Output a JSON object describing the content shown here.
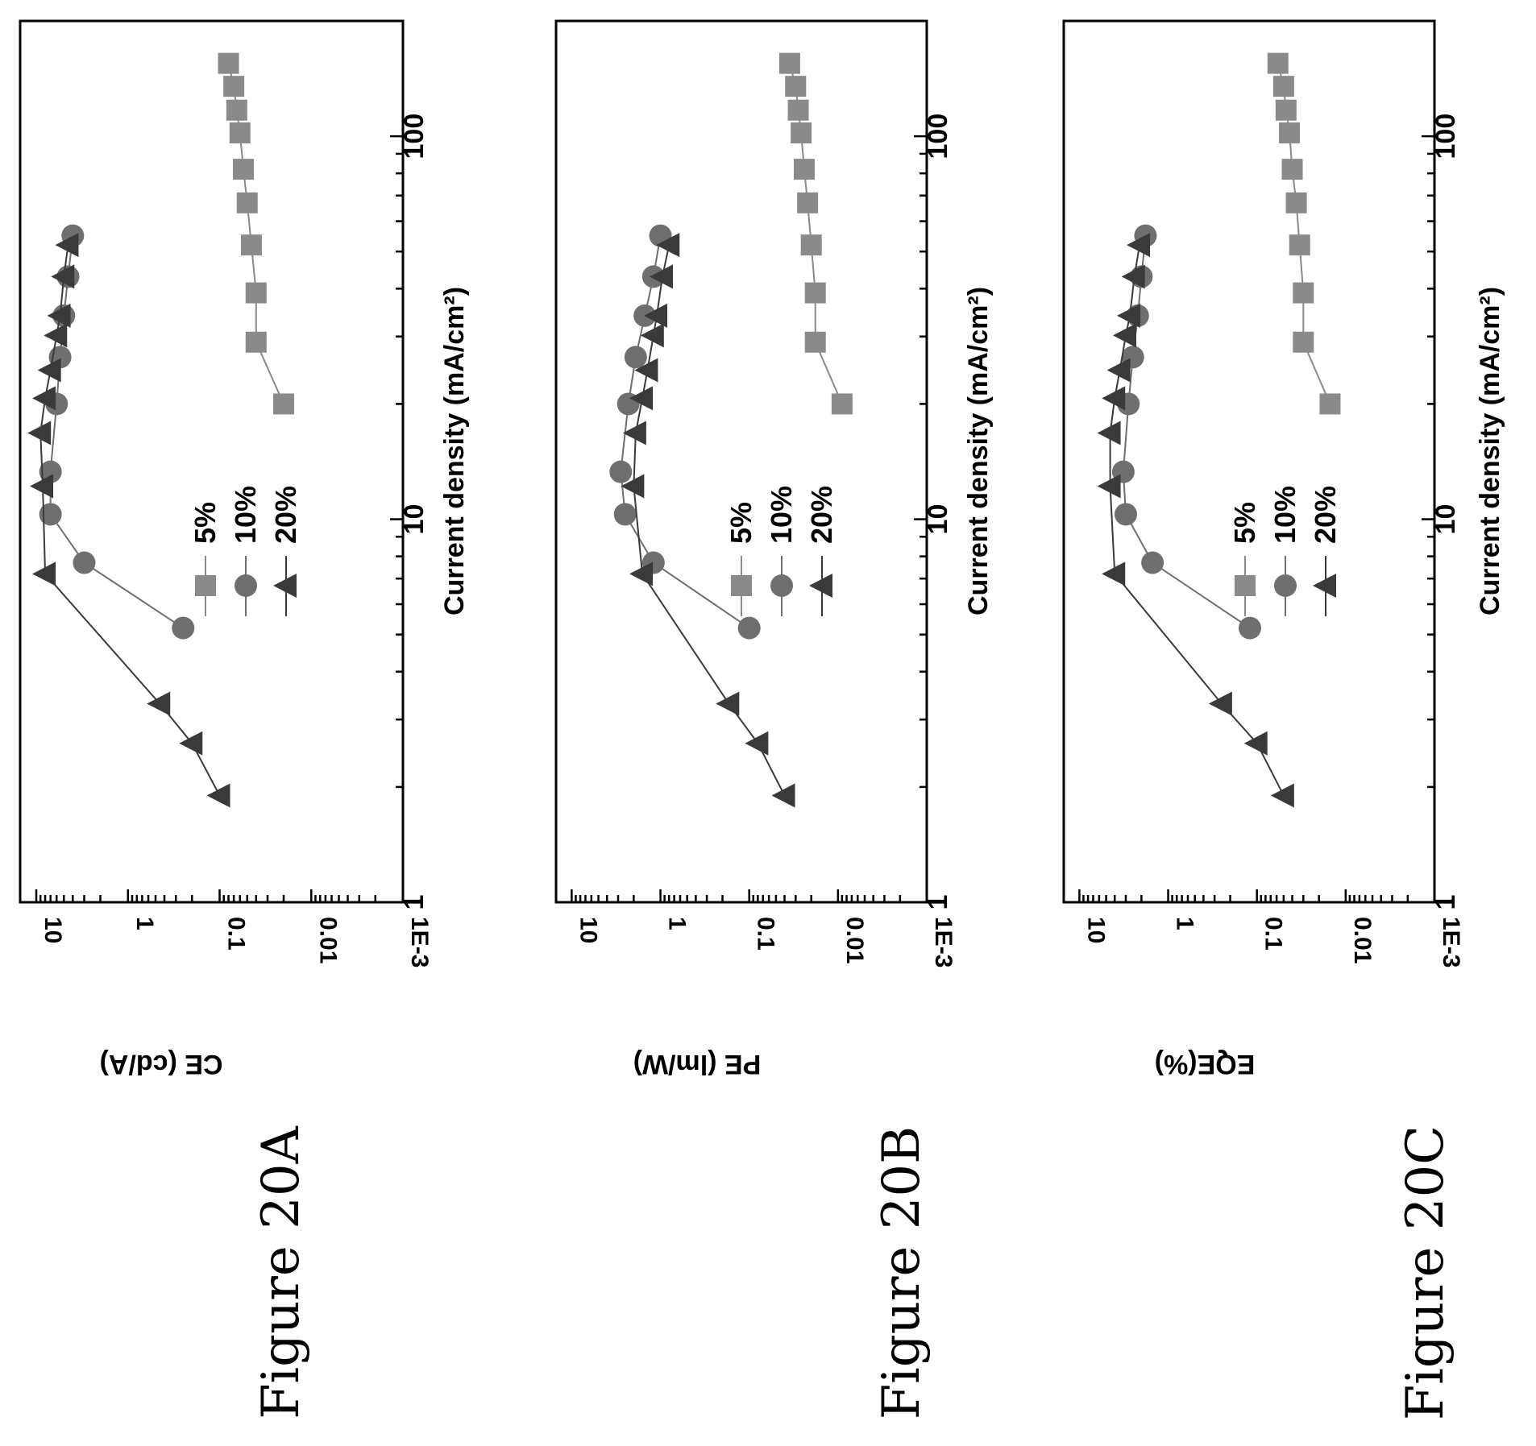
{
  "colors": {
    "s5": "#8a8a8a",
    "s10": "#6f6f6f",
    "s20": "#3a3a3a",
    "axis": "#000000",
    "background": "#ffffff"
  },
  "chart_data": [
    {
      "type": "line",
      "figure_label": "Figure 20A",
      "title": "",
      "xlabel": "Current density (mA/cm²)",
      "ylabel": "CE (cd/A)",
      "xscale": "log",
      "yscale": "log",
      "xlim": [
        1,
        200
      ],
      "ylim": [
        0.001,
        15
      ],
      "xticks": [
        "1",
        "10",
        "100"
      ],
      "yticks": [
        "10",
        "1",
        "0.1",
        "0.01",
        "1E-3"
      ],
      "legend_placement": "bottom-left",
      "orientation": "rotated 90° clockwise",
      "series": [
        {
          "name": "5%",
          "marker": "square",
          "x": [
            20,
            29,
            39,
            52,
            67,
            82,
            102,
            117,
            135,
            155
          ],
          "y": [
            0.02,
            0.04,
            0.04,
            0.045,
            0.05,
            0.055,
            0.06,
            0.065,
            0.07,
            0.08
          ]
        },
        {
          "name": "10%",
          "marker": "circle",
          "x": [
            5.2,
            7.7,
            10.3,
            13.3,
            20,
            26.5,
            34,
            43,
            55
          ],
          "y": [
            0.25,
            3.0,
            7.0,
            7.0,
            6.0,
            5.5,
            5.0,
            4.5,
            4.0
          ]
        },
        {
          "name": "20%",
          "marker": "triangle",
          "x": [
            1.9,
            2.6,
            3.3,
            7.2,
            12.2,
            16.8,
            20.7,
            24.5,
            30.2,
            34,
            43,
            52
          ],
          "y": [
            0.1,
            0.2,
            0.45,
            8.0,
            8.5,
            9.0,
            8.0,
            7.0,
            6.0,
            5.5,
            5.0,
            4.5
          ]
        }
      ]
    },
    {
      "type": "line",
      "figure_label": "Figure 20B",
      "title": "",
      "xlabel": "Current density (mA/cm²)",
      "ylabel": "PE (lm/W)",
      "xscale": "log",
      "yscale": "log",
      "xlim": [
        1,
        200
      ],
      "ylim": [
        0.001,
        15
      ],
      "xticks": [
        "1",
        "10",
        "100"
      ],
      "yticks": [
        "10",
        "1",
        "0.1",
        "0.01",
        "1E-3"
      ],
      "legend_placement": "bottom-left",
      "orientation": "rotated 90° clockwise",
      "series": [
        {
          "name": "5%",
          "marker": "square",
          "x": [
            20,
            29,
            39,
            52,
            67,
            82,
            102,
            117,
            135,
            155
          ],
          "y": [
            0.009,
            0.018,
            0.018,
            0.02,
            0.022,
            0.024,
            0.026,
            0.028,
            0.03,
            0.035
          ]
        },
        {
          "name": "10%",
          "marker": "circle",
          "x": [
            5.2,
            7.7,
            10.3,
            13.3,
            20,
            26.5,
            34,
            43,
            55
          ],
          "y": [
            0.1,
            1.2,
            2.5,
            2.8,
            2.3,
            1.9,
            1.5,
            1.2,
            1.0
          ]
        },
        {
          "name": "20%",
          "marker": "triangle",
          "x": [
            1.9,
            2.6,
            3.3,
            7.2,
            12.2,
            16.8,
            20.7,
            24.5,
            30.2,
            34,
            43,
            52
          ],
          "y": [
            0.04,
            0.08,
            0.17,
            1.6,
            2.0,
            1.9,
            1.6,
            1.4,
            1.2,
            1.1,
            0.95,
            0.8
          ]
        }
      ]
    },
    {
      "type": "line",
      "figure_label": "Figure 20C",
      "title": "",
      "xlabel": "Current density (mA/cm²)",
      "ylabel": "EQE(%)",
      "xscale": "log",
      "yscale": "log",
      "xlim": [
        1,
        200
      ],
      "ylim": [
        0.001,
        15
      ],
      "xticks": [
        "1",
        "10",
        "100"
      ],
      "yticks": [
        "10",
        "1",
        "0.1",
        "0.01",
        "1E-3"
      ],
      "legend_placement": "bottom-left",
      "orientation": "rotated 90° clockwise",
      "series": [
        {
          "name": "5%",
          "marker": "square",
          "x": [
            20,
            29,
            39,
            52,
            67,
            82,
            102,
            117,
            135,
            155
          ],
          "y": [
            0.015,
            0.03,
            0.03,
            0.033,
            0.036,
            0.04,
            0.043,
            0.047,
            0.05,
            0.058
          ]
        },
        {
          "name": "10%",
          "marker": "circle",
          "x": [
            5.2,
            7.7,
            10.3,
            13.3,
            20,
            26.5,
            34,
            43,
            55
          ],
          "y": [
            0.12,
            1.5,
            3.0,
            3.2,
            2.8,
            2.5,
            2.2,
            2.0,
            1.8
          ]
        },
        {
          "name": "20%",
          "marker": "triangle",
          "x": [
            1.9,
            2.6,
            3.3,
            7.2,
            12.2,
            16.8,
            20.7,
            24.5,
            30.2,
            34,
            43,
            52
          ],
          "y": [
            0.05,
            0.1,
            0.25,
            4.0,
            4.5,
            4.5,
            4.0,
            3.5,
            3.0,
            2.7,
            2.4,
            2.1
          ]
        }
      ]
    }
  ]
}
